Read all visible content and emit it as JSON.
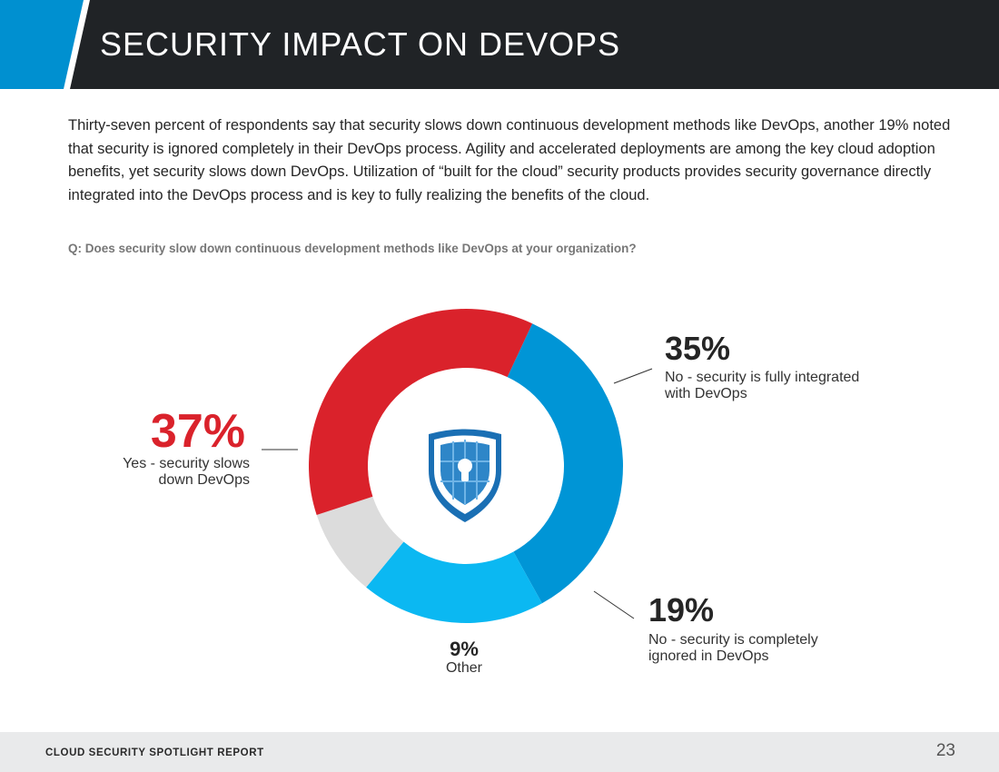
{
  "header": {
    "title": "SECURITY IMPACT ON DEVOPS",
    "accent_color": "#0090d0",
    "bar_color": "#202326"
  },
  "intro": "Thirty-seven percent of respondents say that security slows down continuous development methods like DevOps, another 19% noted that security is ignored completely in their DevOps process. Agility and accelerated deployments are among the key cloud adoption benefits, yet security slows down DevOps. Utilization of “built for the cloud” security products provides security governance directly integrated into the DevOps process and is key to fully realizing the benefits of the cloud.",
  "question": "Q: Does security slow down continuous development methods like DevOps at your organization?",
  "center_icon": "shield-lock-icon",
  "chart_data": {
    "type": "pie",
    "variant": "donut",
    "slices": [
      {
        "key": "no_integrated",
        "percent_label": "35%",
        "label": "No - security is fully integrated with DevOps",
        "value": 35,
        "color": "#0095d6"
      },
      {
        "key": "no_ignored",
        "percent_label": "19%",
        "label": "No - security is completely ignored in DevOps",
        "value": 19,
        "color": "#0bb8f2"
      },
      {
        "key": "other",
        "percent_label": "9%",
        "label": "Other",
        "value": 9,
        "color": "#dcdcdc"
      },
      {
        "key": "yes_slows",
        "percent_label": "37%",
        "label": "Yes - security slows down DevOps",
        "value": 37,
        "color": "#da222b"
      }
    ]
  },
  "footer": {
    "report_title": "CLOUD SECURITY SPOTLIGHT REPORT",
    "page_number": "23"
  }
}
